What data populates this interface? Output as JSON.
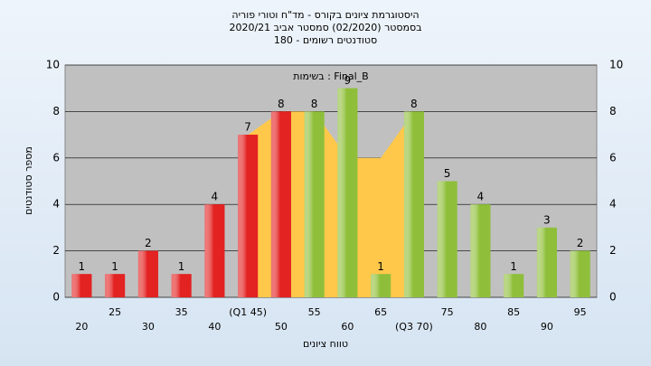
{
  "chart_data": {
    "type": "bar",
    "title_lines": [
      "היסטוגרמת ציונים בקורס - מד\"ח וטורי פוריה",
      "בסמסטר  (02/2020)  סמסטר אביב 2020/21",
      "סטודנטים רשומים - 180"
    ],
    "annotation": "בשימות : Final_B",
    "y_label": "מספר סטודנטים",
    "x_label": "טווח ציונים",
    "categories": [
      "20",
      "25",
      "30",
      "35",
      "40",
      "(Q1 45)",
      "50",
      "55",
      "60",
      "65",
      "(Q3 70)",
      "75",
      "80",
      "85",
      "90",
      "95"
    ],
    "values": [
      1,
      1,
      2,
      1,
      4,
      7,
      8,
      8,
      9,
      1,
      8,
      5,
      4,
      1,
      3,
      2
    ],
    "colors": [
      "#e32222",
      "#e32222",
      "#e32222",
      "#e32222",
      "#e32222",
      "#e32222",
      "#e32222",
      "#8fbf3a",
      "#8fbf3a",
      "#8fbf3a",
      "#8fbf3a",
      "#8fbf3a",
      "#8fbf3a",
      "#8fbf3a",
      "#8fbf3a",
      "#8fbf3a"
    ],
    "band": {
      "color": "#ffc84a",
      "values": [
        null,
        null,
        null,
        null,
        null,
        7,
        8,
        8,
        6,
        6,
        8,
        null,
        null,
        null,
        null,
        null
      ]
    },
    "ylim": [
      0,
      10
    ],
    "yticks": [
      0,
      2,
      4,
      6,
      8,
      10
    ],
    "grid": true
  }
}
